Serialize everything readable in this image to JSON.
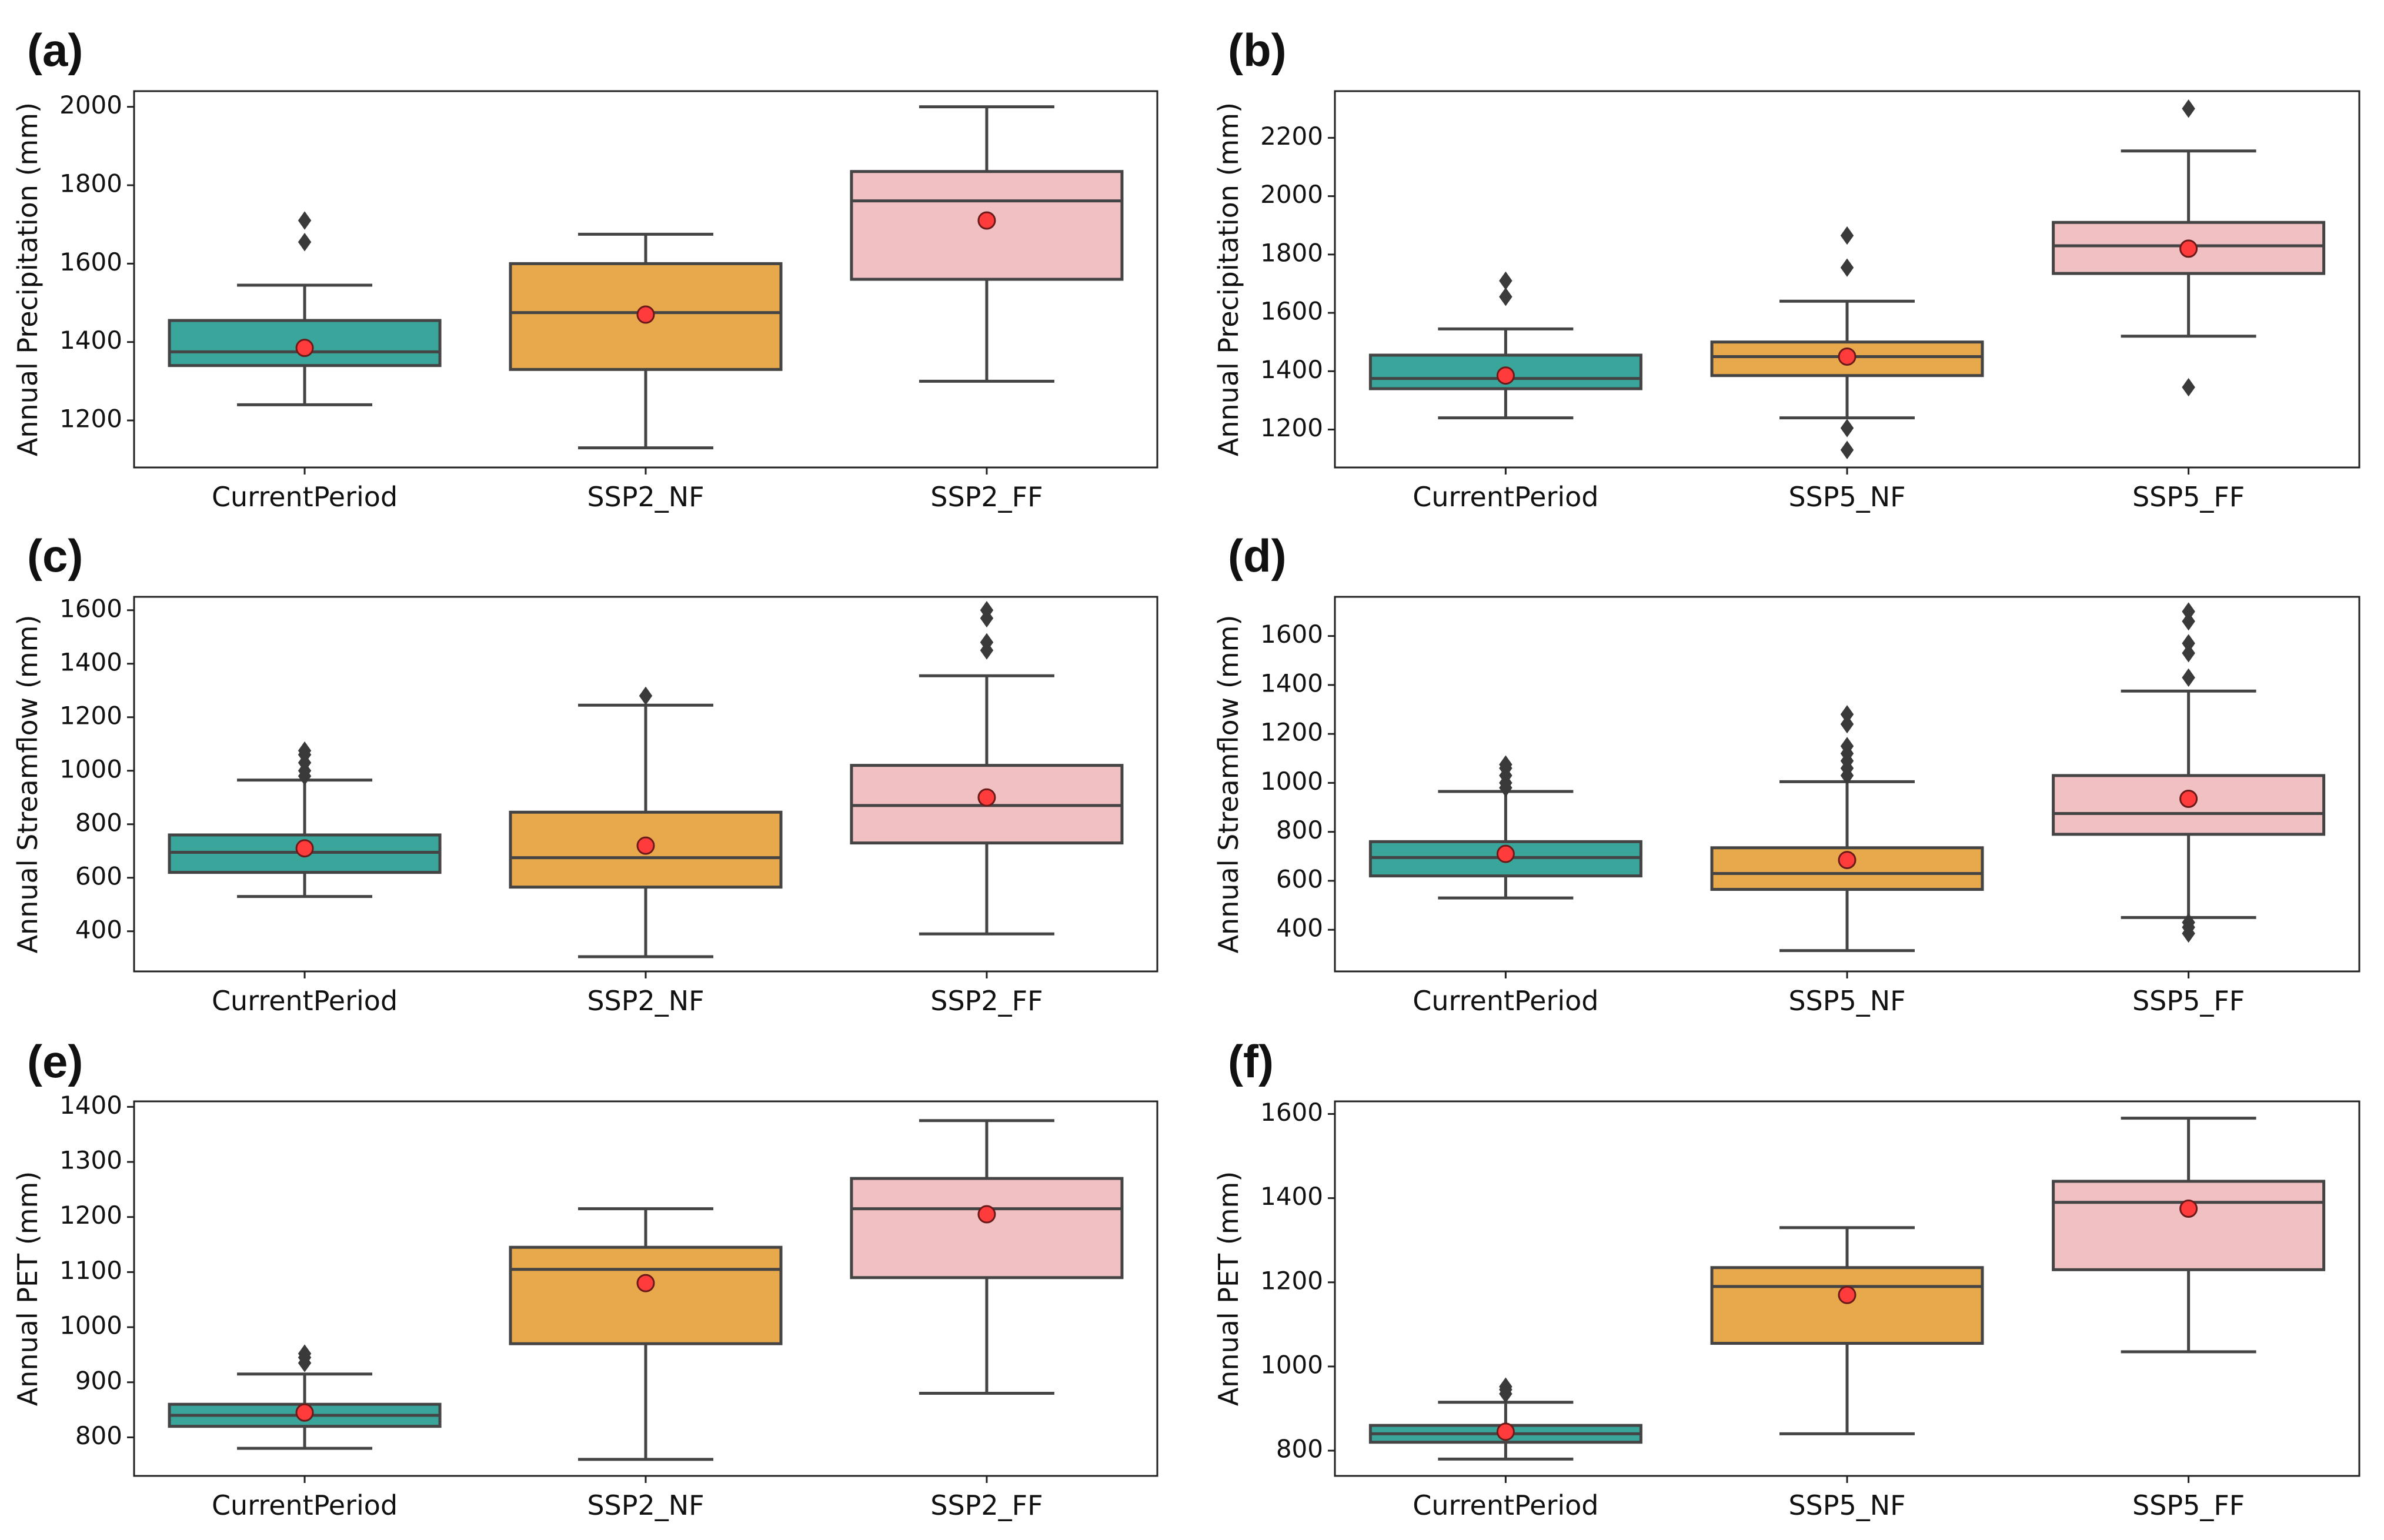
{
  "figure": {
    "colors": {
      "CurrentPeriod": "#3aa59b",
      "NF": "#e8a94c",
      "FF": "#f0c0c3",
      "line": "#444444",
      "mean_fill": "#ff3b3b",
      "mean_edge": "#6b1a1a"
    }
  },
  "chart_data": [
    {
      "panel": "(a)",
      "type": "box",
      "ylabel": "Annual Precipitation (mm)",
      "ylim": [
        1080,
        2040
      ],
      "yticks": [
        1200,
        1400,
        1600,
        1800,
        2000
      ],
      "categories": [
        "CurrentPeriod",
        "SSP2_NF",
        "SSP2_FF"
      ],
      "boxes": [
        {
          "whislo": 1240,
          "q1": 1340,
          "med": 1375,
          "q3": 1455,
          "whishi": 1545,
          "mean": 1385,
          "fliers": [
            1655,
            1710
          ]
        },
        {
          "whislo": 1130,
          "q1": 1330,
          "med": 1475,
          "q3": 1600,
          "whishi": 1675,
          "mean": 1470,
          "fliers": []
        },
        {
          "whislo": 1300,
          "q1": 1560,
          "med": 1760,
          "q3": 1835,
          "whishi": 2000,
          "mean": 1710,
          "fliers": []
        }
      ]
    },
    {
      "panel": "(b)",
      "type": "box",
      "ylabel": "Annual Precipitation (mm)",
      "ylim": [
        1070,
        2360
      ],
      "yticks": [
        1200,
        1400,
        1600,
        1800,
        2000,
        2200
      ],
      "categories": [
        "CurrentPeriod",
        "SSP5_NF",
        "SSP5_FF"
      ],
      "boxes": [
        {
          "whislo": 1240,
          "q1": 1340,
          "med": 1375,
          "q3": 1455,
          "whishi": 1545,
          "mean": 1385,
          "fliers": [
            1655,
            1710
          ]
        },
        {
          "whislo": 1240,
          "q1": 1385,
          "med": 1450,
          "q3": 1500,
          "whishi": 1640,
          "mean": 1450,
          "fliers": [
            1130,
            1205,
            1755,
            1865
          ]
        },
        {
          "whislo": 1520,
          "q1": 1735,
          "med": 1830,
          "q3": 1910,
          "whishi": 2155,
          "mean": 1820,
          "fliers": [
            1345,
            2300
          ]
        }
      ]
    },
    {
      "panel": "(c)",
      "type": "box",
      "ylabel": "Annual Streamflow (mm)",
      "ylim": [
        250,
        1650
      ],
      "yticks": [
        400,
        600,
        800,
        1000,
        1200,
        1400,
        1600
      ],
      "categories": [
        "CurrentPeriod",
        "SSP2_NF",
        "SSP2_FF"
      ],
      "boxes": [
        {
          "whislo": 530,
          "q1": 620,
          "med": 695,
          "q3": 760,
          "whishi": 965,
          "mean": 710,
          "fliers": [
            980,
            1000,
            1030,
            1060,
            1075
          ]
        },
        {
          "whislo": 305,
          "q1": 565,
          "med": 675,
          "q3": 845,
          "whishi": 1245,
          "mean": 720,
          "fliers": [
            1280
          ]
        },
        {
          "whislo": 390,
          "q1": 730,
          "med": 870,
          "q3": 1020,
          "whishi": 1355,
          "mean": 900,
          "fliers": [
            1450,
            1480,
            1570,
            1600
          ]
        }
      ]
    },
    {
      "panel": "(d)",
      "type": "box",
      "ylabel": "Annual Streamflow (mm)",
      "ylim": [
        230,
        1760
      ],
      "yticks": [
        400,
        600,
        800,
        1000,
        1200,
        1400,
        1600
      ],
      "categories": [
        "CurrentPeriod",
        "SSP5_NF",
        "SSP5_FF"
      ],
      "boxes": [
        {
          "whislo": 530,
          "q1": 620,
          "med": 695,
          "q3": 760,
          "whishi": 965,
          "mean": 710,
          "fliers": [
            980,
            1000,
            1030,
            1060,
            1075
          ]
        },
        {
          "whislo": 315,
          "q1": 565,
          "med": 630,
          "q3": 735,
          "whishi": 1005,
          "mean": 685,
          "fliers": [
            1030,
            1060,
            1090,
            1120,
            1150,
            1240,
            1280
          ]
        },
        {
          "whislo": 450,
          "q1": 790,
          "med": 875,
          "q3": 1030,
          "whishi": 1375,
          "mean": 935,
          "fliers": [
            385,
            410,
            430,
            1430,
            1530,
            1570,
            1660,
            1700
          ]
        }
      ]
    },
    {
      "panel": "(e)",
      "type": "box",
      "ylabel": "Annual PET (mm)",
      "ylim": [
        730,
        1410
      ],
      "yticks": [
        800,
        900,
        1000,
        1100,
        1200,
        1300,
        1400
      ],
      "categories": [
        "CurrentPeriod",
        "SSP2_NF",
        "SSP2_FF"
      ],
      "boxes": [
        {
          "whislo": 780,
          "q1": 820,
          "med": 840,
          "q3": 860,
          "whishi": 915,
          "mean": 845,
          "fliers": [
            935,
            945,
            952
          ]
        },
        {
          "whislo": 760,
          "q1": 970,
          "med": 1105,
          "q3": 1145,
          "whishi": 1215,
          "mean": 1080,
          "fliers": []
        },
        {
          "whislo": 880,
          "q1": 1090,
          "med": 1215,
          "q3": 1270,
          "whishi": 1375,
          "mean": 1205,
          "fliers": []
        }
      ]
    },
    {
      "panel": "(f)",
      "type": "box",
      "ylabel": "Annual PET (mm)",
      "ylim": [
        740,
        1630
      ],
      "yticks": [
        800,
        1000,
        1200,
        1400,
        1600
      ],
      "categories": [
        "CurrentPeriod",
        "SSP5_NF",
        "SSP5_FF"
      ],
      "boxes": [
        {
          "whislo": 780,
          "q1": 820,
          "med": 840,
          "q3": 860,
          "whishi": 915,
          "mean": 845,
          "fliers": [
            935,
            945,
            952
          ]
        },
        {
          "whislo": 840,
          "q1": 1055,
          "med": 1190,
          "q3": 1235,
          "whishi": 1330,
          "mean": 1170,
          "fliers": []
        },
        {
          "whislo": 1035,
          "q1": 1230,
          "med": 1390,
          "q3": 1440,
          "whishi": 1590,
          "mean": 1375,
          "fliers": []
        }
      ]
    }
  ]
}
